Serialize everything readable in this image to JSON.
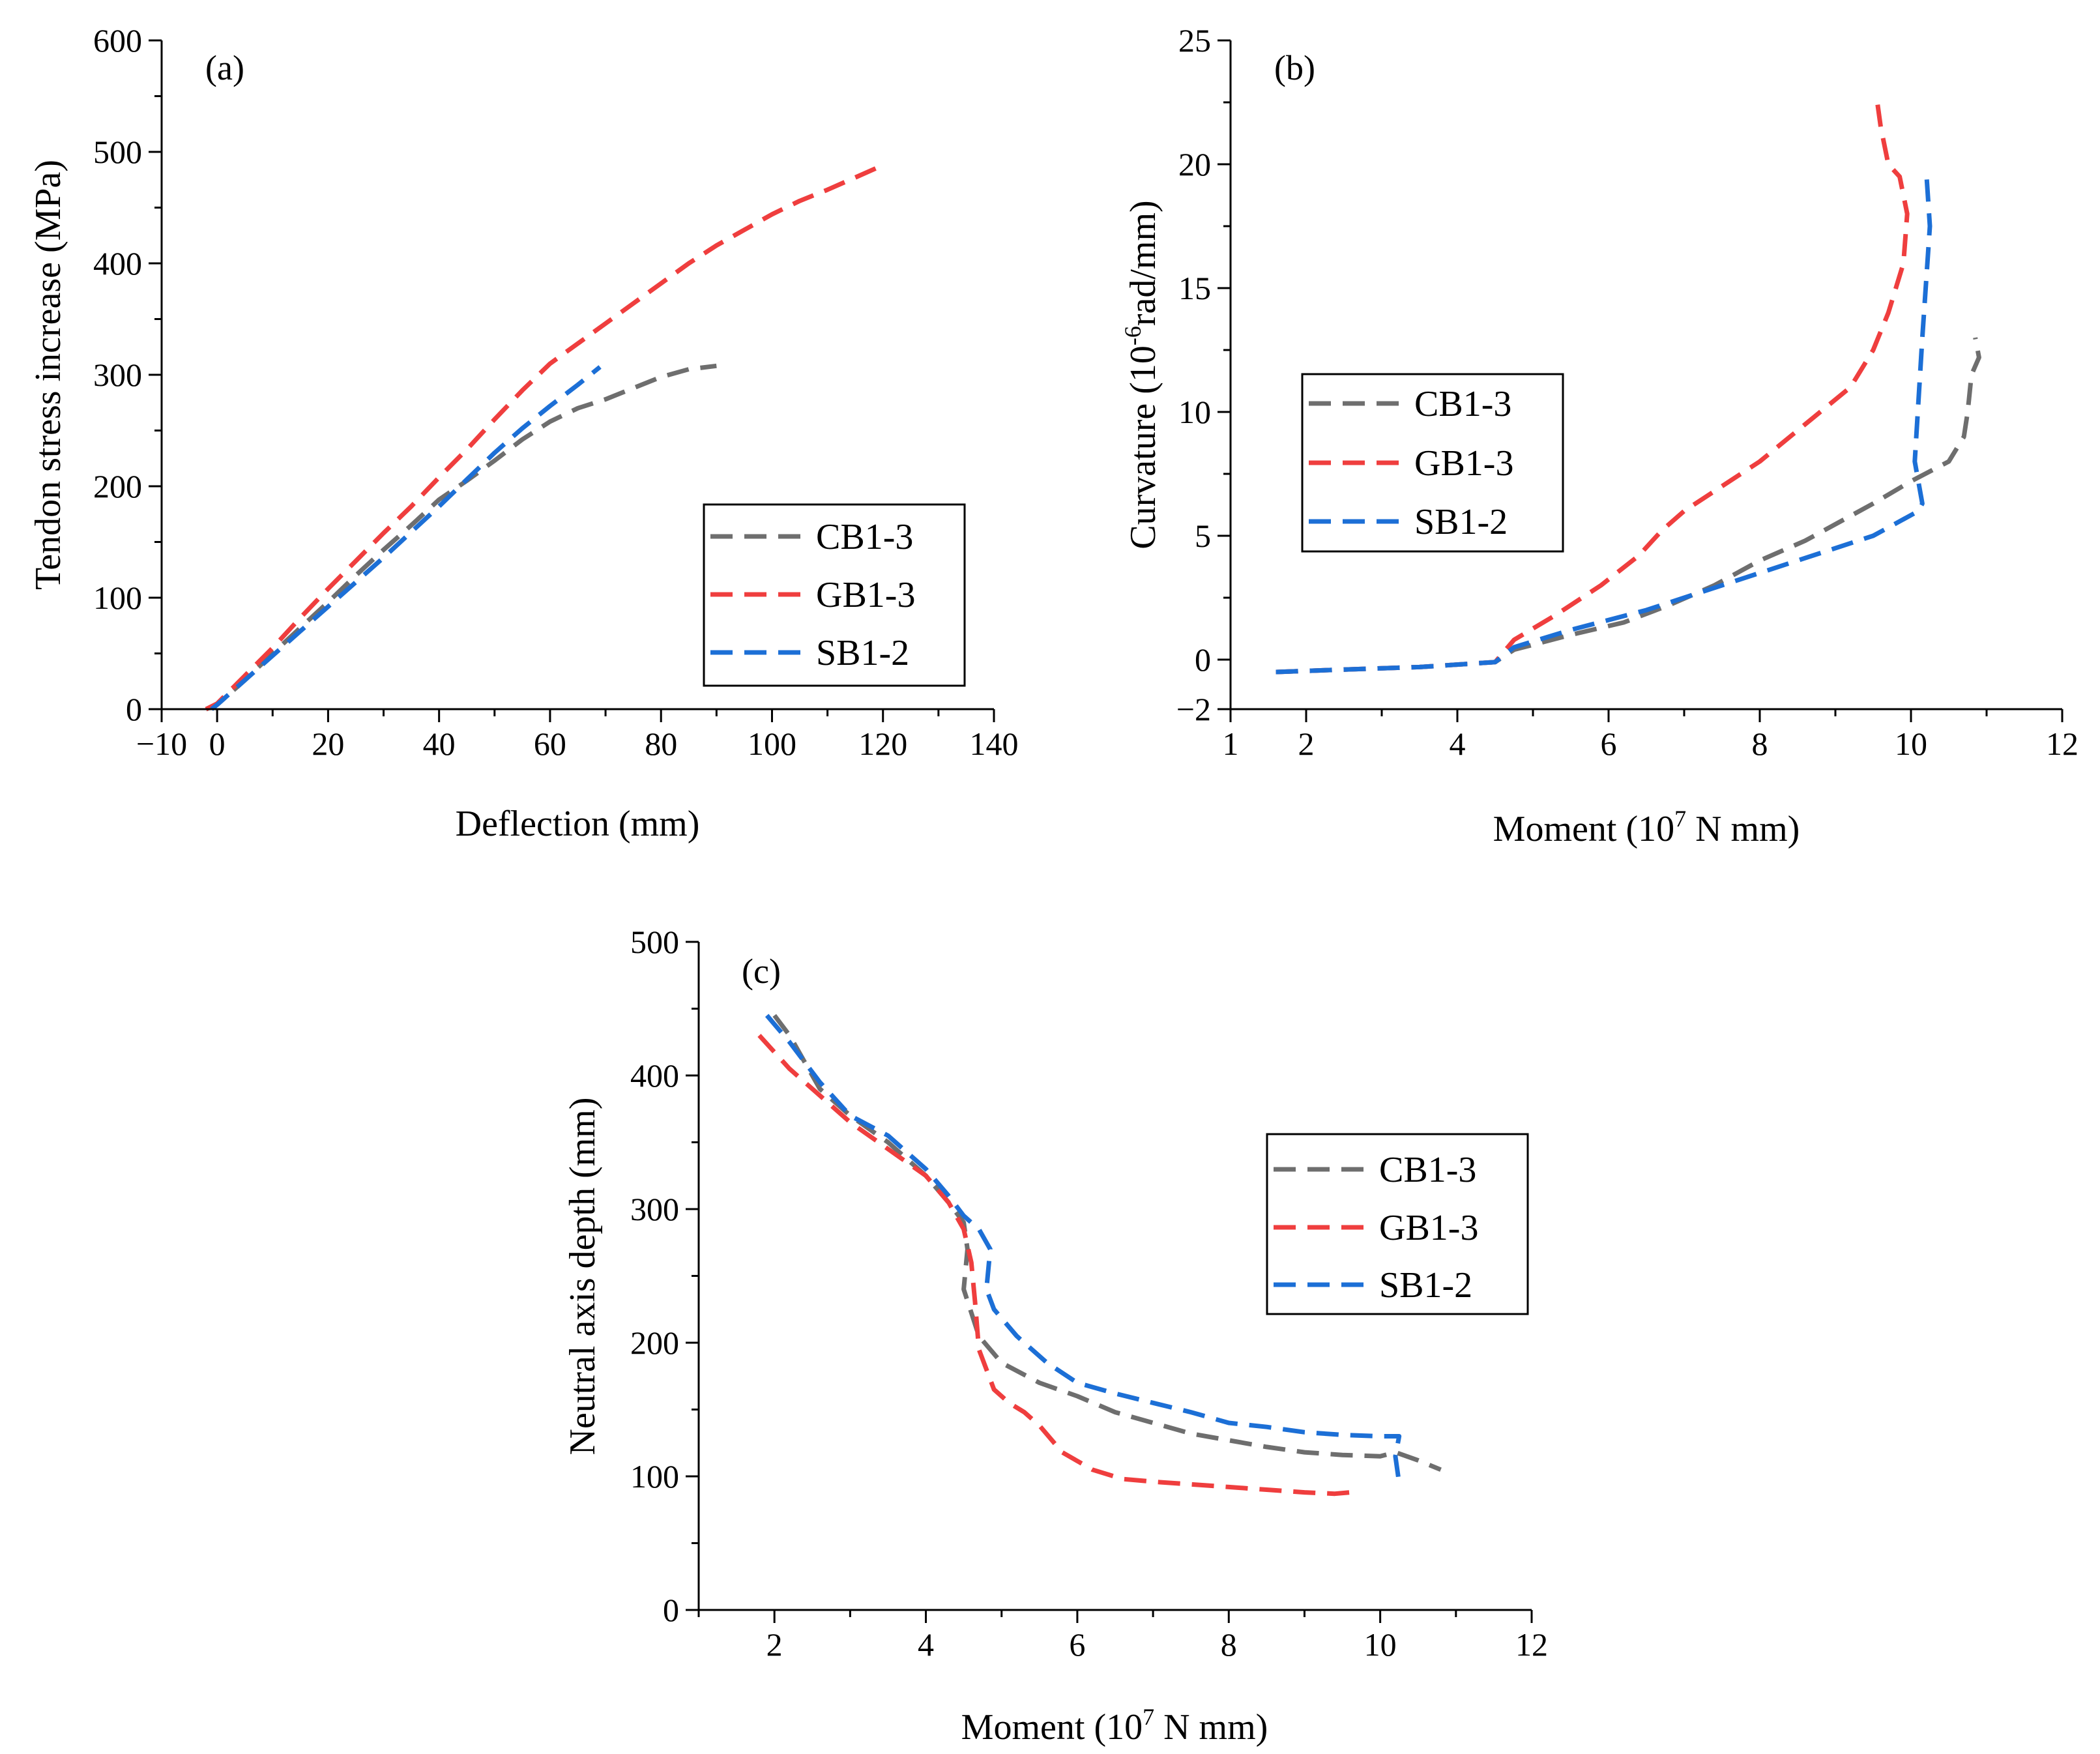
{
  "colors": {
    "CB1-3": "#6e6e6e",
    "GB1-3": "#ef3e3e",
    "SB1-2": "#1c6fd6",
    "axis": "#000000"
  },
  "chart_data": [
    {
      "id": "a",
      "type": "line",
      "panel_label": "(a)",
      "title": "",
      "xlabel": "Deflection (mm)",
      "ylabel": "Tendon stress increase (MPa)",
      "xlim": [
        -10,
        140
      ],
      "ylim": [
        0,
        600
      ],
      "xticks": [
        -10,
        0,
        20,
        40,
        60,
        80,
        100,
        120,
        140
      ],
      "xtick_labels": [
        "−10",
        "0",
        "20",
        "40",
        "60",
        "80",
        "100",
        "120",
        "140"
      ],
      "xminor": [
        10,
        30,
        50,
        70,
        90,
        110,
        130
      ],
      "yticks": [
        0,
        100,
        200,
        300,
        400,
        500,
        600
      ],
      "ytick_labels": [
        "0",
        "100",
        "200",
        "300",
        "400",
        "500",
        "600"
      ],
      "yminor": [
        50,
        150,
        250,
        350,
        450,
        550
      ],
      "legend": "center-right",
      "series": [
        {
          "name": "CB1-3",
          "x": [
            -2,
            0,
            5,
            10,
            15,
            20,
            25,
            30,
            35,
            40,
            45,
            50,
            55,
            60,
            65,
            70,
            75,
            80,
            85,
            90
          ],
          "y": [
            0,
            4,
            26,
            50,
            73,
            96,
            120,
            143,
            165,
            188,
            205,
            223,
            242,
            258,
            270,
            278,
            288,
            298,
            305,
            308
          ]
        },
        {
          "name": "GB1-3",
          "x": [
            -2,
            0,
            5,
            10,
            15,
            20,
            25,
            30,
            35,
            40,
            45,
            50,
            55,
            60,
            65,
            70,
            75,
            80,
            85,
            90,
            95,
            100,
            105,
            110,
            115,
            120
          ],
          "y": [
            0,
            5,
            30,
            55,
            82,
            108,
            133,
            158,
            182,
            208,
            233,
            260,
            286,
            310,
            328,
            346,
            364,
            382,
            400,
            416,
            430,
            444,
            456,
            466,
            477,
            488
          ]
        },
        {
          "name": "SB1-2",
          "x": [
            -1,
            0,
            5,
            10,
            15,
            20,
            25,
            30,
            35,
            40,
            45,
            50,
            55,
            60,
            65,
            69
          ],
          "y": [
            0,
            4,
            26,
            48,
            70,
            92,
            114,
            136,
            159,
            182,
            206,
            230,
            252,
            272,
            291,
            307
          ]
        }
      ]
    },
    {
      "id": "b",
      "type": "line",
      "panel_label": "(b)",
      "title": "",
      "xlabel_text": "Moment (10",
      "xlabel_sup": "7",
      "xlabel_tail": " N mm)",
      "ylabel_text": "Curvature (10",
      "ylabel_sup": "-6",
      "ylabel_tail": "rad/mm)",
      "xlim": [
        1,
        12
      ],
      "ylim": [
        -2,
        25
      ],
      "xticks": [
        1,
        2,
        4,
        6,
        8,
        10,
        12
      ],
      "xtick_labels": [
        "1",
        "2",
        "4",
        "6",
        "8",
        "10",
        "12"
      ],
      "xminor": [
        3,
        5,
        7,
        9,
        11
      ],
      "yticks": [
        -2,
        0,
        5,
        10,
        15,
        20,
        25
      ],
      "ytick_labels": [
        "−2",
        "0",
        "5",
        "10",
        "15",
        "20",
        "25"
      ],
      "yminor": [
        2.5,
        7.5,
        12.5,
        17.5,
        22.5
      ],
      "legend": "center-left",
      "series": [
        {
          "name": "CB1-3",
          "x": [
            1.6,
            2.5,
            3.5,
            4.5,
            4.75,
            5.5,
            6.2,
            6.8,
            7.4,
            8.0,
            8.6,
            9.2,
            9.5,
            10.0,
            10.5,
            10.7,
            10.75,
            10.8,
            10.9,
            10.85
          ],
          "y": [
            -0.5,
            -0.4,
            -0.3,
            -0.1,
            0.4,
            1.0,
            1.5,
            2.2,
            3.0,
            4.0,
            4.8,
            5.8,
            6.3,
            7.2,
            8.0,
            9.0,
            10.0,
            11.5,
            12.2,
            13.0
          ]
        },
        {
          "name": "GB1-3",
          "x": [
            1.6,
            2.5,
            3.5,
            4.5,
            4.75,
            5.3,
            5.9,
            6.4,
            6.7,
            7.0,
            7.5,
            8.0,
            8.6,
            9.2,
            9.5,
            9.7,
            9.9,
            9.95,
            9.85,
            9.7,
            9.6,
            9.55
          ],
          "y": [
            -0.5,
            -0.4,
            -0.3,
            -0.1,
            0.8,
            1.8,
            3.0,
            4.2,
            5.2,
            6.0,
            7.0,
            8.0,
            9.5,
            11.0,
            12.5,
            14.0,
            16.0,
            18.0,
            19.5,
            20.0,
            21.5,
            22.6
          ]
        },
        {
          "name": "SB1-2",
          "x": [
            1.6,
            2.5,
            3.5,
            4.5,
            4.75,
            5.5,
            6.5,
            7.5,
            8.5,
            9.5,
            10.1,
            10.15,
            10.05,
            10.1,
            10.15,
            10.25,
            10.2
          ],
          "y": [
            -0.5,
            -0.4,
            -0.3,
            -0.1,
            0.5,
            1.2,
            2.0,
            3.0,
            4.0,
            5.0,
            6.0,
            6.3,
            8.0,
            10.5,
            13.0,
            17.5,
            19.8
          ]
        }
      ]
    },
    {
      "id": "c",
      "type": "line",
      "panel_label": "(c)",
      "title": "",
      "xlabel_text": "Moment (10",
      "xlabel_sup": "7",
      "xlabel_tail": " N mm)",
      "ylabel": "Neutral axis depth (mm)",
      "xlim": [
        1,
        12
      ],
      "ylim": [
        0,
        500
      ],
      "xticks": [
        2,
        4,
        6,
        8,
        10,
        12
      ],
      "xtick_labels": [
        "2",
        "4",
        "6",
        "8",
        "10",
        "12"
      ],
      "xminor": [
        1,
        3,
        5,
        7,
        9,
        11
      ],
      "yticks": [
        0,
        100,
        200,
        300,
        400,
        500
      ],
      "ytick_labels": [
        "0",
        "100",
        "200",
        "300",
        "400",
        "500"
      ],
      "yminor": [
        50,
        150,
        250,
        350,
        450
      ],
      "legend": "center-right",
      "series": [
        {
          "name": "CB1-3",
          "x": [
            2.0,
            2.2,
            2.6,
            3.0,
            3.5,
            4.0,
            4.3,
            4.5,
            4.55,
            4.5,
            4.7,
            5.0,
            5.5,
            6.0,
            6.5,
            7.0,
            7.5,
            8.0,
            8.5,
            9.0,
            9.5,
            10.0,
            10.2,
            10.5,
            10.8
          ],
          "y": [
            445,
            430,
            390,
            370,
            350,
            325,
            305,
            290,
            270,
            240,
            205,
            185,
            170,
            160,
            148,
            140,
            132,
            127,
            122,
            118,
            116,
            115,
            118,
            112,
            105
          ]
        },
        {
          "name": "GB1-3",
          "x": [
            1.8,
            2.2,
            2.6,
            3.0,
            3.5,
            4.0,
            4.3,
            4.5,
            4.6,
            4.65,
            4.7,
            4.9,
            5.1,
            5.3,
            5.5,
            5.8,
            6.2,
            6.6,
            7.0,
            7.5,
            8.0,
            8.5,
            9.0,
            9.4,
            9.6,
            9.7
          ],
          "y": [
            430,
            405,
            385,
            365,
            345,
            325,
            305,
            285,
            260,
            230,
            195,
            165,
            155,
            148,
            138,
            118,
            105,
            98,
            96,
            94,
            92,
            90,
            88,
            87,
            88,
            92
          ]
        },
        {
          "name": "SB1-2",
          "x": [
            1.9,
            2.2,
            2.6,
            3.0,
            3.5,
            4.0,
            4.3,
            4.5,
            4.7,
            4.85,
            4.8,
            4.9,
            5.2,
            5.6,
            6.0,
            6.5,
            7.0,
            7.5,
            8.0,
            8.5,
            9.0,
            9.5,
            10.0,
            10.25,
            10.2,
            10.25
          ],
          "y": [
            445,
            425,
            395,
            370,
            355,
            330,
            310,
            295,
            285,
            270,
            240,
            225,
            205,
            185,
            170,
            162,
            155,
            148,
            140,
            137,
            133,
            131,
            130,
            130,
            115,
            95
          ]
        }
      ]
    }
  ]
}
